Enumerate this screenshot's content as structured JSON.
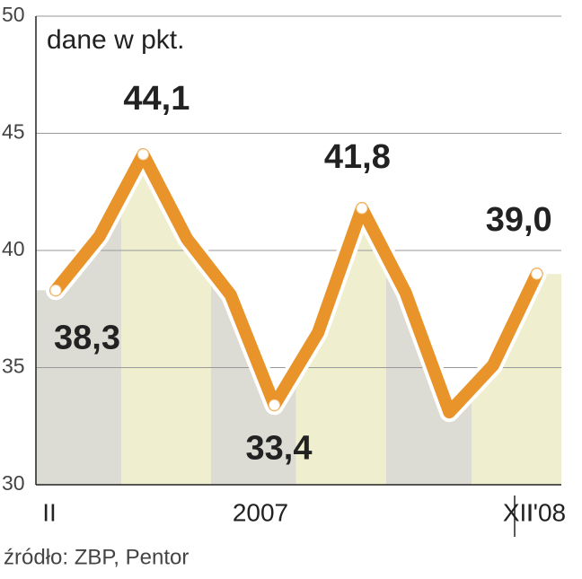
{
  "chart_data": {
    "type": "line",
    "subtitle": "dane w pkt.",
    "source": "źródło: ZBP, Pentor",
    "categories": [
      "II",
      null,
      null,
      null,
      null,
      null,
      null,
      null,
      null,
      null,
      "XII",
      "I'08"
    ],
    "x_group_label": "2007",
    "series": [
      {
        "color": "#e8942a",
        "values": [
          38.3,
          40.6,
          44.1,
          40.5,
          38.1,
          33.4,
          36.5,
          41.8,
          38.2,
          33.1,
          35.1,
          39.0
        ],
        "value_labels": [
          "38,3",
          null,
          "44,1",
          null,
          null,
          "33,4",
          null,
          "41,8",
          null,
          null,
          null,
          "39,0"
        ]
      }
    ],
    "ylim": [
      30,
      50
    ],
    "yticks": [
      30,
      35,
      40,
      45,
      50
    ],
    "grid": true
  }
}
